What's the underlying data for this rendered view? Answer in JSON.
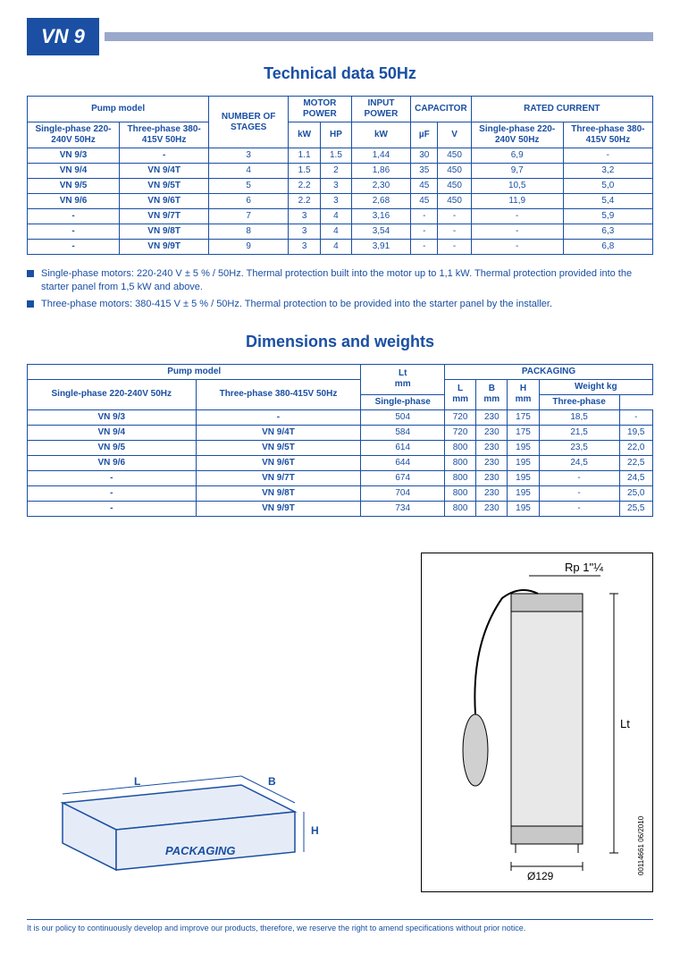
{
  "badge": "VN 9",
  "section1_title": "Technical data 50Hz",
  "section2_title": "Dimensions and weights",
  "notes": [
    "Single-phase motors: 220-240 V ± 5 % / 50Hz. Thermal protection built into the motor up to 1,1 kW. Thermal protection provided into the starter panel from 1,5 kW and above.",
    "Three-phase motors: 380-415 V ± 5 % / 50Hz. Thermal protection to be provided into the starter panel by the installer."
  ],
  "table1": {
    "headers": {
      "pump_model": "Pump model",
      "single_phase": "Single-phase 220-240V 50Hz",
      "three_phase": "Three-phase 380-415V 50Hz",
      "num_stages": "NUMBER OF STAGES",
      "motor_power": "MOTOR POWER",
      "kw": "kW",
      "hp": "HP",
      "input_power": "INPUT POWER",
      "capacitor": "CAPACITOR",
      "uf": "µF",
      "v": "V",
      "rated_current": "RATED CURRENT"
    },
    "rows": [
      {
        "sp": "VN 9/3",
        "tp": "-",
        "stages": "3",
        "kw": "1.1",
        "hp": "1.5",
        "ikw": "1,44",
        "uf": "30",
        "cv": "450",
        "rsp": "6,9",
        "rtp": "-"
      },
      {
        "sp": "VN 9/4",
        "tp": "VN 9/4T",
        "stages": "4",
        "kw": "1.5",
        "hp": "2",
        "ikw": "1,86",
        "uf": "35",
        "cv": "450",
        "rsp": "9,7",
        "rtp": "3,2"
      },
      {
        "sp": "VN 9/5",
        "tp": "VN 9/5T",
        "stages": "5",
        "kw": "2.2",
        "hp": "3",
        "ikw": "2,30",
        "uf": "45",
        "cv": "450",
        "rsp": "10,5",
        "rtp": "5,0"
      },
      {
        "sp": "VN 9/6",
        "tp": "VN 9/6T",
        "stages": "6",
        "kw": "2.2",
        "hp": "3",
        "ikw": "2,68",
        "uf": "45",
        "cv": "450",
        "rsp": "11,9",
        "rtp": "5,4"
      },
      {
        "sp": "-",
        "tp": "VN 9/7T",
        "stages": "7",
        "kw": "3",
        "hp": "4",
        "ikw": "3,16",
        "uf": "-",
        "cv": "-",
        "rsp": "-",
        "rtp": "5,9"
      },
      {
        "sp": "-",
        "tp": "VN 9/8T",
        "stages": "8",
        "kw": "3",
        "hp": "4",
        "ikw": "3,54",
        "uf": "-",
        "cv": "-",
        "rsp": "-",
        "rtp": "6,3"
      },
      {
        "sp": "-",
        "tp": "VN 9/9T",
        "stages": "9",
        "kw": "3",
        "hp": "4",
        "ikw": "3,91",
        "uf": "-",
        "cv": "-",
        "rsp": "-",
        "rtp": "6,8"
      }
    ]
  },
  "table2": {
    "headers": {
      "pump_model": "Pump model",
      "single_phase": "Single-phase 220-240V 50Hz",
      "three_phase": "Three-phase 380-415V 50Hz",
      "lt": "Lt",
      "mm": "mm",
      "packaging": "PACKAGING",
      "l": "L",
      "b": "B",
      "h": "H",
      "weight": "Weight kg",
      "sp": "Single-phase",
      "tp": "Three-phase"
    },
    "rows": [
      {
        "sp": "VN 9/3",
        "tp": "-",
        "lt": "504",
        "l": "720",
        "b": "230",
        "h": "175",
        "wsp": "18,5",
        "wtp": "-"
      },
      {
        "sp": "VN 9/4",
        "tp": "VN 9/4T",
        "lt": "584",
        "l": "720",
        "b": "230",
        "h": "175",
        "wsp": "21,5",
        "wtp": "19,5"
      },
      {
        "sp": "VN 9/5",
        "tp": "VN 9/5T",
        "lt": "614",
        "l": "800",
        "b": "230",
        "h": "195",
        "wsp": "23,5",
        "wtp": "22,0"
      },
      {
        "sp": "VN 9/6",
        "tp": "VN 9/6T",
        "lt": "644",
        "l": "800",
        "b": "230",
        "h": "195",
        "wsp": "24,5",
        "wtp": "22,5"
      },
      {
        "sp": "-",
        "tp": "VN 9/7T",
        "lt": "674",
        "l": "800",
        "b": "230",
        "h": "195",
        "wsp": "-",
        "wtp": "24,5"
      },
      {
        "sp": "-",
        "tp": "VN 9/8T",
        "lt": "704",
        "l": "800",
        "b": "230",
        "h": "195",
        "wsp": "-",
        "wtp": "25,0"
      },
      {
        "sp": "-",
        "tp": "VN 9/9T",
        "lt": "734",
        "l": "800",
        "b": "230",
        "h": "195",
        "wsp": "-",
        "wtp": "25,5"
      }
    ]
  },
  "diagram": {
    "packaging_label": "PACKAGING",
    "l_label": "L",
    "b_label": "B",
    "h_label": "H",
    "rp_label": "Rp 1\"¼",
    "lt_label": "Lt",
    "dia_label": "Ø129",
    "code": "00114661  06/2010"
  },
  "footer": "It is our policy to continuously develop and improve our products, therefore, we reserve the right to amend specifications without prior notice.",
  "colors": {
    "brand": "#1a4fa3",
    "bar": "#9aa8cc",
    "line": "#003b8e"
  }
}
